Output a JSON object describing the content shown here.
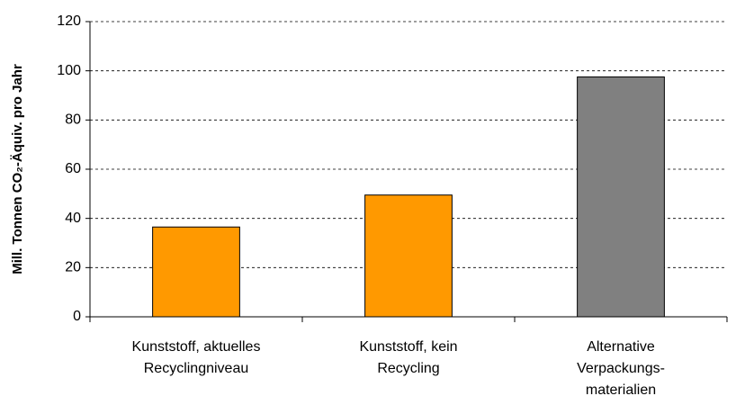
{
  "chart_data": {
    "type": "bar",
    "ylabel": "Mill. Tonnen CO₂-Äquiv. pro Jahr",
    "categories": [
      [
        "Kunststoff, aktuelles",
        "Recyclingniveau"
      ],
      [
        "Kunststoff, kein",
        "Recycling"
      ],
      [
        "Alternative",
        "Verpackungs-",
        "materialien"
      ]
    ],
    "values": [
      36.5,
      49.5,
      97.5
    ],
    "colors": [
      "#ff9900",
      "#ff9900",
      "#808080"
    ],
    "ylim": [
      0,
      120
    ],
    "yticks": [
      0,
      20,
      40,
      60,
      80,
      100,
      120
    ],
    "grid": true
  }
}
